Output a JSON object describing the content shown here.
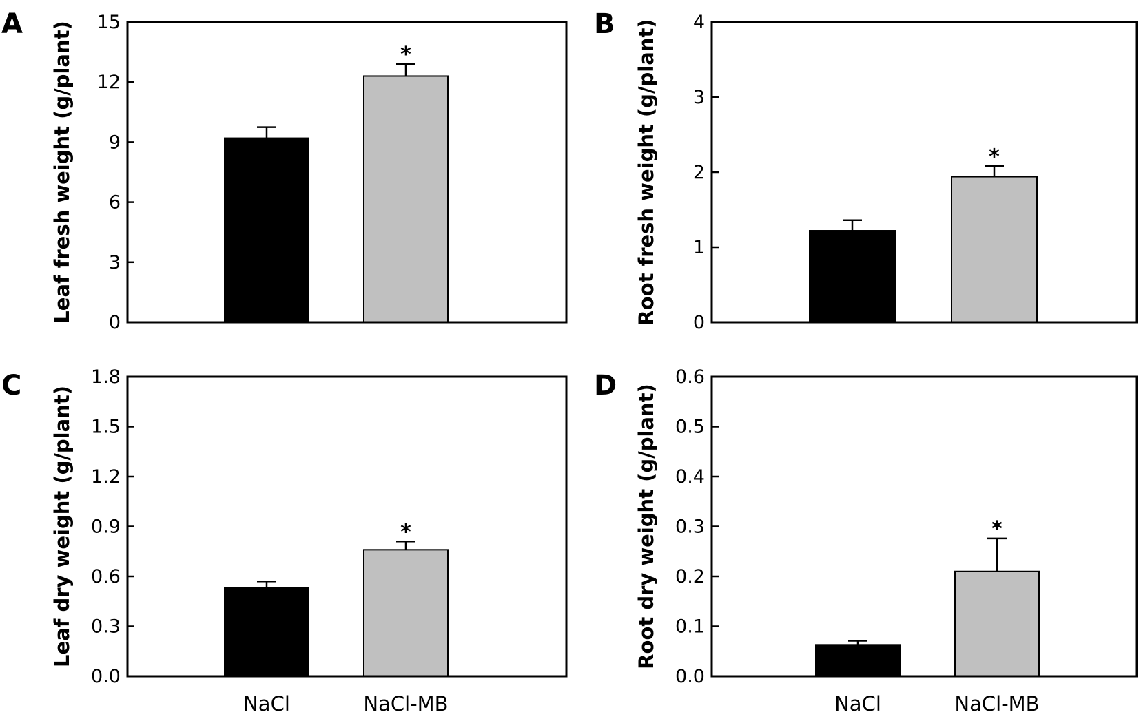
{
  "chart_data": [
    {
      "panel": "A",
      "type": "bar",
      "categories": [
        "NaCl",
        "NaCl-MB"
      ],
      "values": [
        9.2,
        12.3
      ],
      "errors": [
        0.55,
        0.6
      ],
      "significance": [
        "",
        "*"
      ],
      "colors": [
        "#000000",
        "#c0c0c0"
      ],
      "ylabel": "Leaf fresh weight (g/plant)",
      "ylim": [
        0,
        15
      ],
      "yticks": [
        "0",
        "3",
        "6",
        "9",
        "12",
        "15"
      ],
      "show_xlabels": false
    },
    {
      "panel": "B",
      "type": "bar",
      "categories": [
        "NaCl",
        "NaCl-MB"
      ],
      "values": [
        1.22,
        1.94
      ],
      "errors": [
        0.14,
        0.14
      ],
      "significance": [
        "",
        "*"
      ],
      "colors": [
        "#000000",
        "#c0c0c0"
      ],
      "ylabel": "Root fresh weight (g/plant)",
      "ylim": [
        0,
        4
      ],
      "yticks": [
        "0",
        "1",
        "2",
        "3",
        "4"
      ],
      "show_xlabels": false
    },
    {
      "panel": "C",
      "type": "bar",
      "categories": [
        "NaCl",
        "NaCl-MB"
      ],
      "values": [
        0.53,
        0.76
      ],
      "errors": [
        0.04,
        0.05
      ],
      "significance": [
        "",
        "*"
      ],
      "colors": [
        "#000000",
        "#c0c0c0"
      ],
      "ylabel": "Leaf dry weight (g/plant)",
      "ylim": [
        0,
        1.8
      ],
      "yticks": [
        "0.0",
        "0.3",
        "0.6",
        "0.9",
        "1.2",
        "1.5",
        "1.8"
      ],
      "show_xlabels": true
    },
    {
      "panel": "D",
      "type": "bar",
      "categories": [
        "NaCl",
        "NaCl-MB"
      ],
      "values": [
        0.063,
        0.21
      ],
      "errors": [
        0.008,
        0.066
      ],
      "significance": [
        "",
        "*"
      ],
      "colors": [
        "#000000",
        "#c0c0c0"
      ],
      "ylabel": "Root dry weight (g/plant)",
      "ylim": [
        0,
        0.6
      ],
      "yticks": [
        "0.0",
        "0.1",
        "0.2",
        "0.3",
        "0.4",
        "0.5",
        "0.6"
      ],
      "show_xlabels": true
    }
  ]
}
